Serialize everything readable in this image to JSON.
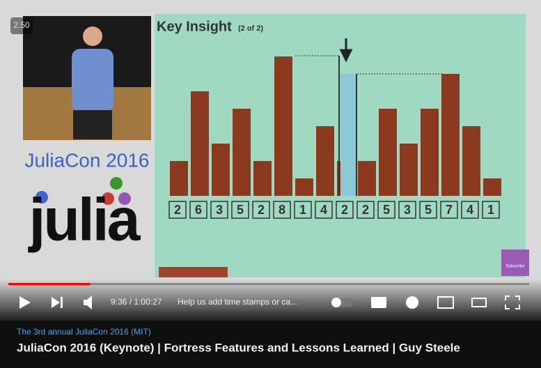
{
  "player": {
    "speed": "2.50",
    "time": "9:36 / 1:00:27",
    "chapter": "Help us add time stamps or ca...",
    "subscribe": "Subscribe"
  },
  "slide": {
    "title": "Key Insight",
    "subtitle": "(2 of 2)",
    "values": [
      2,
      6,
      3,
      5,
      2,
      8,
      1,
      4,
      2,
      2,
      5,
      3,
      5,
      7,
      4,
      1
    ]
  },
  "branding": {
    "conference": "JuliaCon 2016",
    "logo": "julia"
  },
  "meta": {
    "description": "The 3rd annual JuliaCon 2016 (MIT)",
    "title": "JuliaCon 2016 (Keynote) | Fortress Features and Lessons Learned | Guy Steele"
  }
}
